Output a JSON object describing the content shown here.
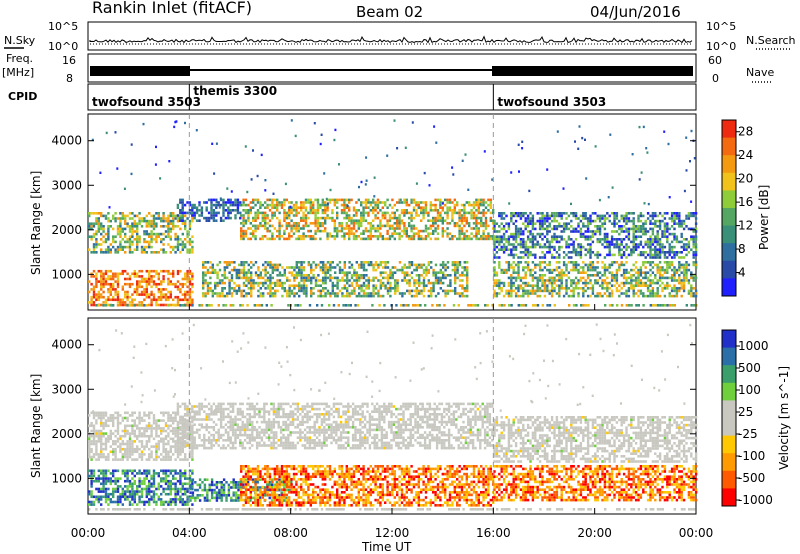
{
  "header": {
    "title": "Rankin Inlet (fitACF)",
    "beam": "Beam 02",
    "date": "04/Jun/2016"
  },
  "strip_labels": {
    "nsky": "N.Sky",
    "nsky_tick_hi": "10^5",
    "nsky_tick_lo": "10^0",
    "nsearch": "N.Search",
    "nsearch_tick_hi": "10^5",
    "nsearch_tick_lo": "10^0",
    "freq": "Freq.",
    "freq_unit": "[MHz]",
    "freq_tick_hi": "16",
    "freq_tick_lo": "8",
    "nave": "Nave",
    "nave_tick_hi": "60",
    "nave_tick_lo": "0",
    "cpid": "CPID"
  },
  "cpid_segments": [
    {
      "label": "twofsound 3503",
      "start_h": 0,
      "end_h": 4
    },
    {
      "label": "themis 3300",
      "start_h": 4,
      "end_h": 16
    },
    {
      "label": "twofsound 3503",
      "start_h": 16,
      "end_h": 24
    }
  ],
  "colors": {
    "power_scale": [
      "#2020ff",
      "#2a4aa8",
      "#2e6f9f",
      "#3a8f78",
      "#54a662",
      "#8fcc3a",
      "#f0c21a",
      "#f49a10",
      "#f46a10",
      "#ee2a10"
    ],
    "velocity_scale": [
      "#ff0000",
      "#ff5a00",
      "#ff9a00",
      "#ffc800",
      "#c8c8c0",
      "#c8c8c0",
      "#6fcf3c",
      "#3a9f6a",
      "#2a6fa8",
      "#2030c8"
    ]
  },
  "chart_data": [
    {
      "type": "heatmap",
      "panel": "power",
      "ylabel": "Slant Range [km]",
      "xlabel": "Time UT",
      "x_ticks": [
        "00:00",
        "04:00",
        "08:00",
        "12:00",
        "16:00",
        "20:00",
        "00:00"
      ],
      "x_range_h": [
        0,
        24
      ],
      "y_ticks": [
        1000,
        2000,
        3000,
        4000
      ],
      "ylim": [
        200,
        4600
      ],
      "colorbar_label": "Power [dB]",
      "colorbar_ticks": [
        "4",
        "8",
        "12",
        "16",
        "20",
        "24",
        "28"
      ],
      "colorbar_range": [
        0,
        30
      ],
      "regions": [
        {
          "t": [
            0,
            4.1
          ],
          "r": [
            300,
            1100
          ],
          "level": "high"
        },
        {
          "t": [
            0,
            4.1
          ],
          "r": [
            1500,
            2400
          ],
          "level": "mid"
        },
        {
          "t": [
            3.5,
            6
          ],
          "r": [
            2200,
            2700
          ],
          "level": "low"
        },
        {
          "t": [
            6,
            16
          ],
          "r": [
            1800,
            2700
          ],
          "level": "mid-high"
        },
        {
          "t": [
            4.5,
            15
          ],
          "r": [
            500,
            1300
          ],
          "level": "mid"
        },
        {
          "t": [
            16,
            24
          ],
          "r": [
            1400,
            2400
          ],
          "level": "low-mid"
        },
        {
          "t": [
            16,
            24
          ],
          "r": [
            500,
            1300
          ],
          "level": "mid"
        }
      ]
    },
    {
      "type": "heatmap",
      "panel": "velocity",
      "ylabel": "Slant Range [km]",
      "xlabel": "Time UT",
      "x_ticks": [
        "00:00",
        "04:00",
        "08:00",
        "12:00",
        "16:00",
        "20:00",
        "00:00"
      ],
      "x_range_h": [
        0,
        24
      ],
      "y_ticks": [
        1000,
        2000,
        3000,
        4000
      ],
      "ylim": [
        200,
        4600
      ],
      "colorbar_label": "Velocity [m s^-1]",
      "colorbar_ticks": [
        "1000",
        "500",
        "100",
        "25",
        "-25",
        "-100",
        "-500",
        "-1000"
      ],
      "colorbar_range": [
        -1000,
        1000
      ],
      "regions": [
        {
          "t": [
            0,
            4.1
          ],
          "r": [
            1400,
            2500
          ],
          "level": "ground"
        },
        {
          "t": [
            3.5,
            16
          ],
          "r": [
            1700,
            2700
          ],
          "level": "ground"
        },
        {
          "t": [
            0,
            4.1
          ],
          "r": [
            400,
            1200
          ],
          "level": "positive"
        },
        {
          "t": [
            4,
            8
          ],
          "r": [
            500,
            1000
          ],
          "level": "positive"
        },
        {
          "t": [
            6,
            16
          ],
          "r": [
            400,
            1300
          ],
          "level": "negative"
        },
        {
          "t": [
            16,
            24
          ],
          "r": [
            1400,
            2400
          ],
          "level": "ground"
        },
        {
          "t": [
            16,
            24
          ],
          "r": [
            500,
            1300
          ],
          "level": "negative"
        }
      ]
    }
  ]
}
